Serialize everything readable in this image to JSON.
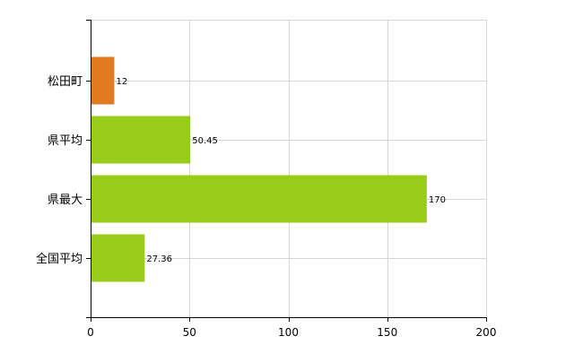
{
  "chart_data": {
    "type": "bar",
    "orientation": "horizontal",
    "categories": [
      "松田町",
      "県平均",
      "県最大",
      "全国平均"
    ],
    "values": [
      12,
      50.45,
      170,
      27.36
    ],
    "value_labels": [
      "12",
      "50.45",
      "170",
      "27.36"
    ],
    "bar_colors": [
      "#e07b22",
      "#99cc1a",
      "#99cc1a",
      "#99cc1a"
    ],
    "xlim": [
      0,
      200
    ],
    "x_ticks": [
      0,
      50,
      100,
      150,
      200
    ],
    "x_tick_labels": [
      "0",
      "50",
      "100",
      "150",
      "200"
    ],
    "grid": true,
    "grid_color": "#d6d6d6",
    "axis_color": "#000000",
    "title": "",
    "xlabel": "",
    "ylabel": ""
  }
}
